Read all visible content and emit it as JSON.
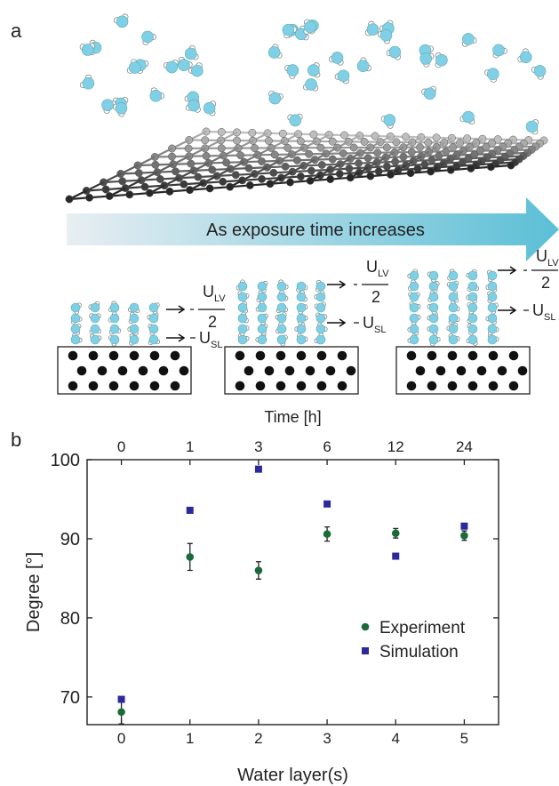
{
  "panel_a": {
    "label": "a",
    "arrow_text": "As exposure time increases",
    "annotations": [
      {
        "top": "U",
        "top_sub": "LV",
        "denominator": "2",
        "bottom": "U",
        "bottom_sub": "SL"
      },
      {
        "top": "U",
        "top_sub": "LV",
        "denominator": "2",
        "bottom": "U",
        "bottom_sub": "SL"
      },
      {
        "top": "U",
        "top_sub": "LV",
        "denominator": "2",
        "bottom": "U",
        "bottom_sub": "SL"
      }
    ]
  },
  "panel_b_label": "b",
  "chart_data": {
    "type": "scatter",
    "xlabel": "Water layer(s)",
    "ylabel": "Degree [°]",
    "x": [
      0,
      1,
      2,
      3,
      4,
      5
    ],
    "xlim": [
      -0.5,
      5.5
    ],
    "xticks": [
      0,
      1,
      2,
      3,
      4,
      5
    ],
    "ylim": [
      66.5,
      100
    ],
    "yticks": [
      70,
      80,
      90,
      100
    ],
    "top_axis": {
      "label": "Time [h]",
      "ticks": [
        {
          "value": 0,
          "label": "0"
        },
        {
          "value": 1,
          "label": "1"
        },
        {
          "value": 2,
          "label": "3"
        },
        {
          "value": 3,
          "label": "6"
        },
        {
          "value": 4,
          "label": "12"
        },
        {
          "value": 5,
          "label": "24"
        }
      ]
    },
    "series": [
      {
        "name": "Experiment",
        "color": "#1b6b3a",
        "marker": "circle",
        "values": [
          68.1,
          87.7,
          86.0,
          90.6,
          90.7,
          90.4
        ],
        "errors": [
          1.5,
          1.7,
          1.1,
          0.9,
          0.6,
          0.6
        ]
      },
      {
        "name": "Simulation",
        "color": "#2a2a9e",
        "marker": "square",
        "values": [
          69.7,
          93.6,
          98.8,
          94.4,
          87.8,
          91.6
        ]
      }
    ],
    "legend": "lower right"
  }
}
